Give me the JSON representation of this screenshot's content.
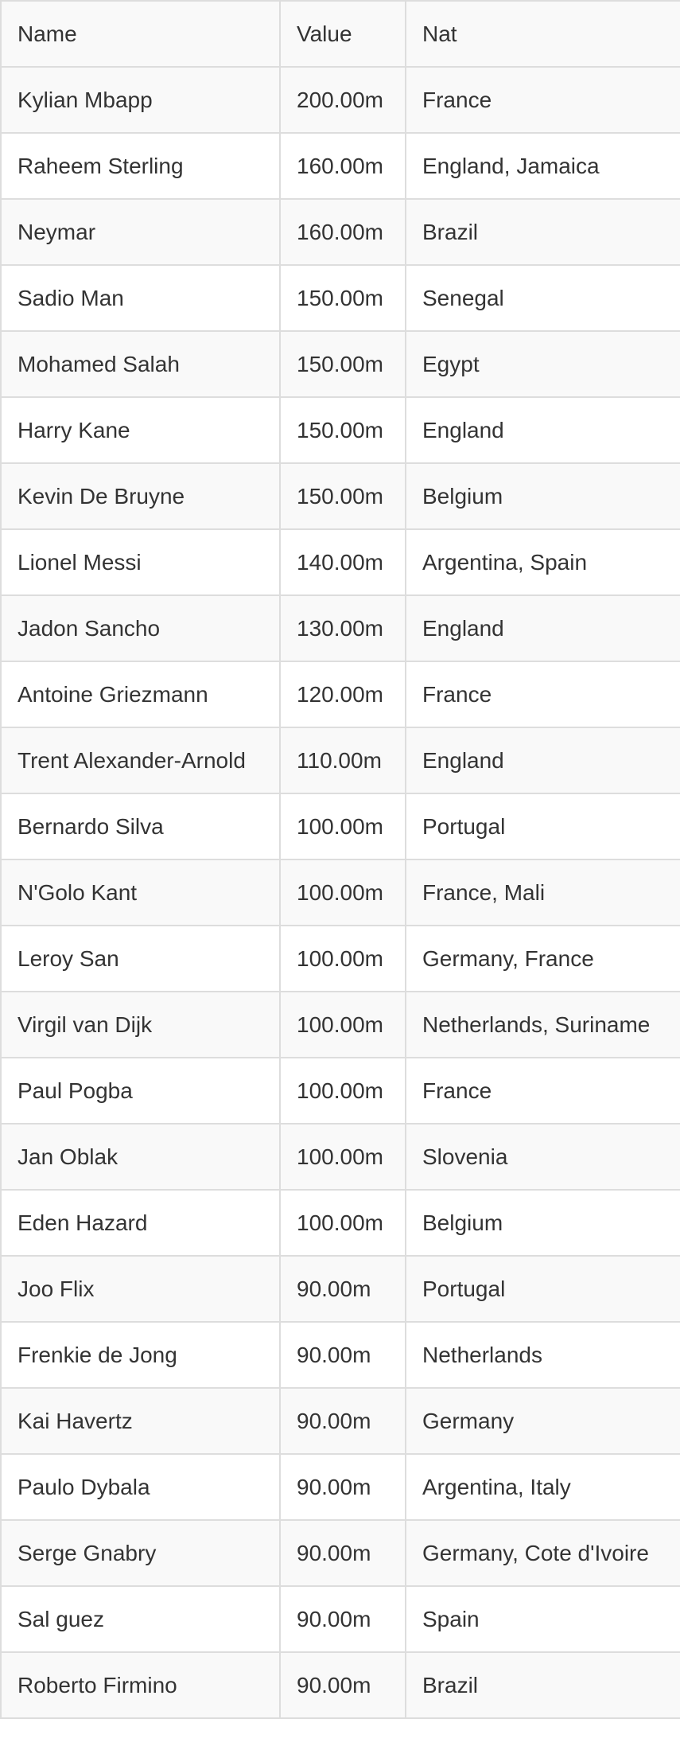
{
  "table": {
    "headers": [
      "Name",
      "Value",
      "Nat"
    ],
    "rows": [
      [
        "Kylian Mbapp",
        "200.00m",
        "France"
      ],
      [
        "Raheem Sterling",
        "160.00m",
        "England, Jamaica"
      ],
      [
        "Neymar",
        "160.00m",
        "Brazil"
      ],
      [
        "Sadio Man",
        "150.00m",
        "Senegal"
      ],
      [
        "Mohamed Salah",
        "150.00m",
        "Egypt"
      ],
      [
        "Harry Kane",
        "150.00m",
        "England"
      ],
      [
        "Kevin De Bruyne",
        "150.00m",
        "Belgium"
      ],
      [
        "Lionel Messi",
        "140.00m",
        "Argentina, Spain"
      ],
      [
        "Jadon Sancho",
        "130.00m",
        "England"
      ],
      [
        "Antoine Griezmann",
        "120.00m",
        "France"
      ],
      [
        "Trent Alexander-Arnold",
        "110.00m",
        "England"
      ],
      [
        "Bernardo Silva",
        "100.00m",
        "Portugal"
      ],
      [
        "N'Golo Kant",
        "100.00m",
        "France, Mali"
      ],
      [
        "Leroy San",
        "100.00m",
        "Germany, France"
      ],
      [
        "Virgil van Dijk",
        "100.00m",
        "Netherlands, Suriname"
      ],
      [
        "Paul Pogba",
        "100.00m",
        "France"
      ],
      [
        "Jan Oblak",
        "100.00m",
        "Slovenia"
      ],
      [
        "Eden Hazard",
        "100.00m",
        "Belgium"
      ],
      [
        "Joo Flix",
        "90.00m",
        "Portugal"
      ],
      [
        "Frenkie de Jong",
        "90.00m",
        "Netherlands"
      ],
      [
        "Kai Havertz",
        "90.00m",
        "Germany"
      ],
      [
        "Paulo Dybala",
        "90.00m",
        "Argentina, Italy"
      ],
      [
        "Serge Gnabry",
        "90.00m",
        "Germany, Cote d'Ivoire"
      ],
      [
        "Sal guez",
        "90.00m",
        "Spain"
      ],
      [
        "Roberto Firmino",
        "90.00m",
        "Brazil"
      ]
    ]
  },
  "colors": {
    "border": "#dddddd",
    "stripe": "#f9f9f9",
    "text": "#333333"
  }
}
